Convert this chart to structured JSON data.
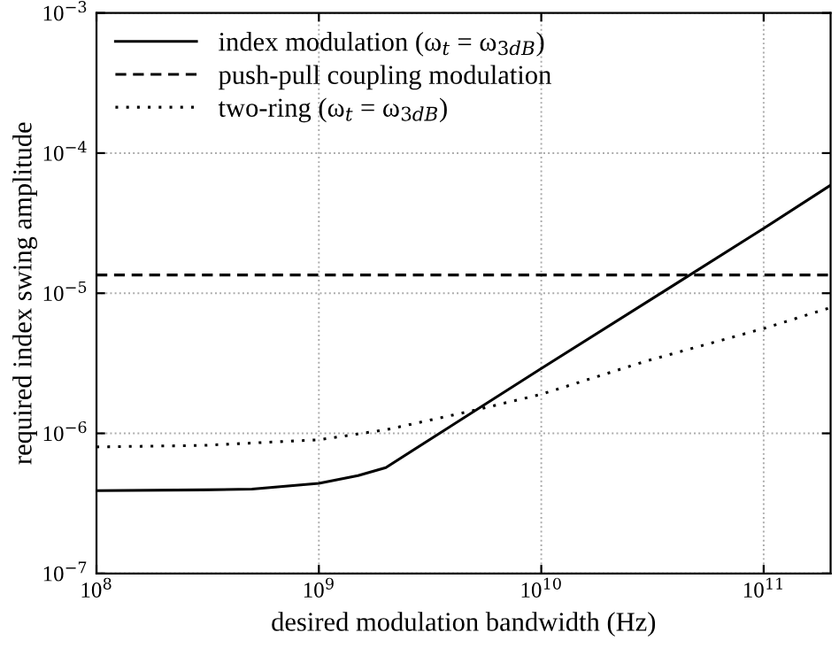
{
  "chart_data": {
    "type": "line",
    "xlabel": "desired modulation bandwidth (Hz)",
    "ylabel": "required index swing amplitude",
    "log": "xy",
    "grid": true,
    "legend": "top left",
    "marker": "none",
    "xlim": [
      100000000.0,
      200000000000.0
    ],
    "ylim": [
      1e-07,
      0.001
    ],
    "xticks": [
      {
        "value": 100000000.0,
        "label": "10$^{8}$"
      },
      {
        "value": 1000000000.0,
        "label": "10$^{9}$"
      },
      {
        "value": 10000000000.0,
        "label": "10$^{10}$"
      },
      {
        "value": 100000000000.0,
        "label": "10$^{11}$"
      }
    ],
    "yticks": [
      {
        "value": 1e-07,
        "label": "10$^{−7}$"
      },
      {
        "value": 1e-06,
        "label": "10$^{−6}$"
      },
      {
        "value": 1e-05,
        "label": "10$^{−5}$"
      },
      {
        "value": 0.0001,
        "label": "10$^{−4}$"
      },
      {
        "value": 0.001,
        "label": "10$^{−3}$"
      }
    ],
    "series": [
      {
        "name": "index modulation (ω$_{t}$ = ω$_{3dB}$)",
        "color": "#000000",
        "line_style": "solid",
        "x": [
          100000000.0,
          300000000.0,
          500000000.0,
          1000000000.0,
          1500000000.0,
          2000000000.0,
          10000000000.0,
          100000000000.0,
          200000000000.0
        ],
        "values": [
          3.9e-07,
          3.95e-07,
          4e-07,
          4.4e-07,
          5e-07,
          5.7e-07,
          2.9e-06,
          2.9e-05,
          5.9e-05
        ]
      },
      {
        "name": "push-pull coupling modulation",
        "color": "#000000",
        "line_style": "dashed",
        "x": [
          100000000.0,
          200000000000.0
        ],
        "values": [
          1.35e-05,
          1.35e-05
        ]
      },
      {
        "name": "two-ring (ω$_{t}$ = ω$_{3dB}$)",
        "color": "#000000",
        "line_style": "dotted",
        "x": [
          100000000.0,
          300000000.0,
          1000000000.0,
          2000000000.0,
          5000000000.0,
          10000000000.0,
          30000000000.0,
          100000000000.0,
          200000000000.0
        ],
        "values": [
          8e-07,
          8.2e-07,
          9e-07,
          1.06e-06,
          1.46e-06,
          1.9e-06,
          3.3e-06,
          5.6e-06,
          7.9e-06
        ]
      }
    ]
  }
}
